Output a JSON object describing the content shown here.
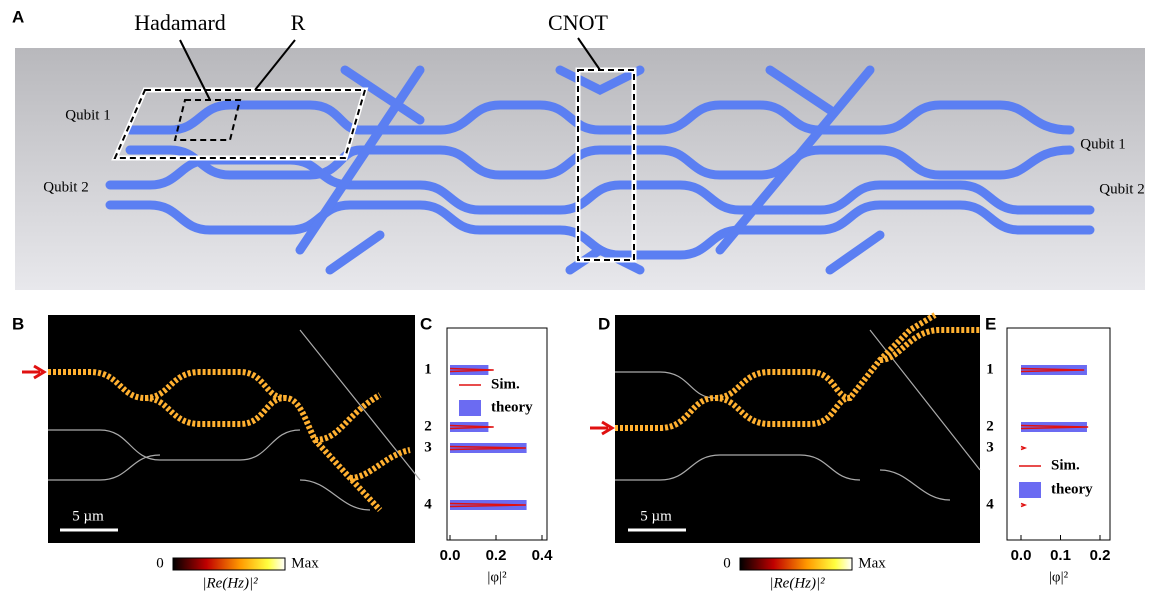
{
  "panels": {
    "a": {
      "label": "A",
      "hadamard": "Hadamard",
      "r": "R",
      "cnot": "CNOT",
      "qubit_left": [
        "Qubit 1",
        "Qubit 2"
      ],
      "qubit_right": [
        "Qubit 1",
        "Qubit 2"
      ]
    },
    "b": {
      "label": "B",
      "scale": "5 µm",
      "colorbar_min": "0",
      "colorbar_max": "Max",
      "colorbar_label": "|Re(Hz)|²"
    },
    "d": {
      "label": "D",
      "scale": "5 µm",
      "colorbar_min": "0",
      "colorbar_max": "Max",
      "colorbar_label": "|Re(Hz)|²"
    }
  },
  "chart_data": [
    {
      "type": "bar",
      "orientation": "horizontal",
      "panel_label": "C",
      "categories": [
        "1",
        "2",
        "3",
        "4"
      ],
      "series": [
        {
          "name": "Sim.",
          "color": "#e01010",
          "values": [
            0.19,
            0.19,
            0.33,
            0.33
          ]
        },
        {
          "name": "theory",
          "color": "#6b6bf2",
          "values": [
            0.167,
            0.167,
            0.333,
            0.333
          ]
        }
      ],
      "xlim": [
        0,
        0.4
      ],
      "xticks": [
        {
          "value": 0,
          "label": "0.0"
        },
        0.2,
        0.4
      ],
      "xlabel": "|φ|²"
    },
    {
      "type": "bar",
      "orientation": "horizontal",
      "panel_label": "E",
      "categories": [
        "1",
        "2",
        "3",
        "4"
      ],
      "series": [
        {
          "name": "Sim.",
          "color": "#e01010",
          "values": [
            0.16,
            0.17,
            0.01,
            0.01
          ]
        },
        {
          "name": "theory",
          "color": "#6b6bf2",
          "values": [
            0.167,
            0.167,
            0,
            0
          ]
        }
      ],
      "xlim": [
        0,
        0.2
      ],
      "xticks": [
        {
          "value": 0,
          "label": "0.0"
        },
        0.1,
        0.2
      ],
      "xlabel": "|φ|²"
    }
  ]
}
